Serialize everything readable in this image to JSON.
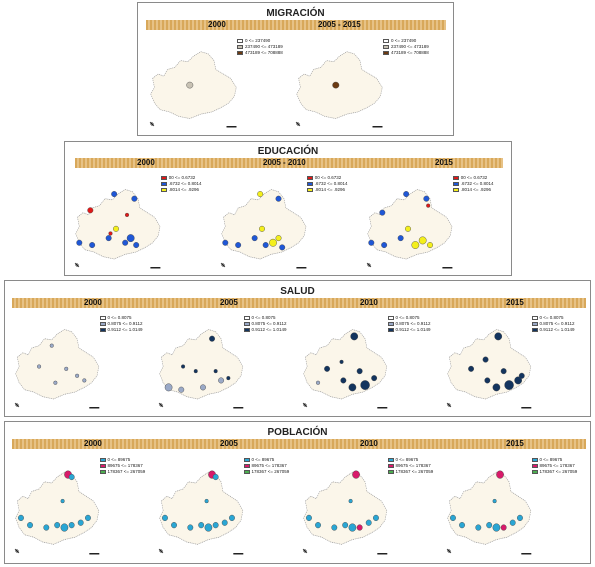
{
  "sections": [
    {
      "id": "migracion",
      "title": "MIGRACIÓN",
      "years": [
        "2000",
        "2005 - 2015"
      ],
      "legend": [
        {
          "label": "0 <= 237490",
          "color": "#ffffff"
        },
        {
          "label": "237490 <= 473189",
          "color": "#c8c2b4"
        },
        {
          "label": "473189 <= 708888",
          "color": "#6b3a12"
        }
      ]
    },
    {
      "id": "educacion",
      "title": "EDUCACIÓN",
      "years": [
        "2000",
        "2005 - 2010",
        "2015"
      ],
      "legend": [
        {
          "label": "00 <= 0.6732",
          "color": "#e01818"
        },
        {
          "label": ".6732 <= 0.8014",
          "color": "#1f57d6"
        },
        {
          "label": ".8014 <= .9296",
          "color": "#f4ef1c"
        }
      ]
    },
    {
      "id": "salud",
      "title": "SALUD",
      "years": [
        "2000",
        "2005",
        "2010",
        "2015"
      ],
      "legend": [
        {
          "label": "0 <= 0.8075",
          "color": "#ffffff"
        },
        {
          "label": "0.8075 <= 0.9112",
          "color": "#9aa9c7"
        },
        {
          "label": "0.9112 <= 1.0149",
          "color": "#13345e"
        }
      ]
    },
    {
      "id": "poblacion",
      "title": "POBLACIÓN",
      "years": [
        "2000",
        "2005",
        "2010",
        "2015"
      ],
      "legend": [
        {
          "label": "0 <= 89675",
          "color": "#2aa6d4"
        },
        {
          "label": "89675 <= 178367",
          "color": "#d81a6a"
        },
        {
          "label": "178367 <= 267059",
          "color": "#4caf50"
        }
      ]
    }
  ],
  "colors": {
    "map_fill": "#fbf6ea",
    "map_outline": "#9a9a9a",
    "year_bar": "#e2b676"
  }
}
